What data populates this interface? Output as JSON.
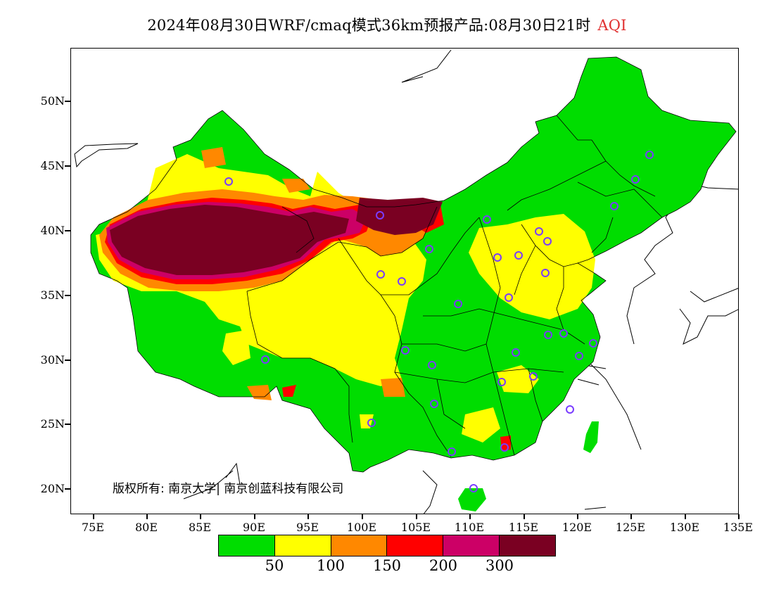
{
  "title": {
    "main": "2024年08月30日WRF/cmaq模式36km预报产品:08月30日21时",
    "variable": "AQI",
    "variable_color": "#e03030"
  },
  "axes": {
    "y_ticks": [
      "50N",
      "45N",
      "40N",
      "35N",
      "30N",
      "25N",
      "20N"
    ],
    "x_ticks": [
      "75E",
      "80E",
      "85E",
      "90E",
      "95E",
      "100E",
      "105E",
      "110E",
      "115E",
      "120E",
      "125E",
      "130E",
      "135E"
    ]
  },
  "copyright": "版权所有: 南京大学| 南京创蓝科技有限公司",
  "legend": {
    "colors": [
      "#00dd00",
      "#ffff00",
      "#ff8800",
      "#ff0000",
      "#cc0066",
      "#7a0022"
    ],
    "labels": [
      "50",
      "100",
      "150",
      "200",
      "300"
    ]
  },
  "map": {
    "land_color": "#00dd00",
    "station_marker_color": "#7a3cff"
  }
}
